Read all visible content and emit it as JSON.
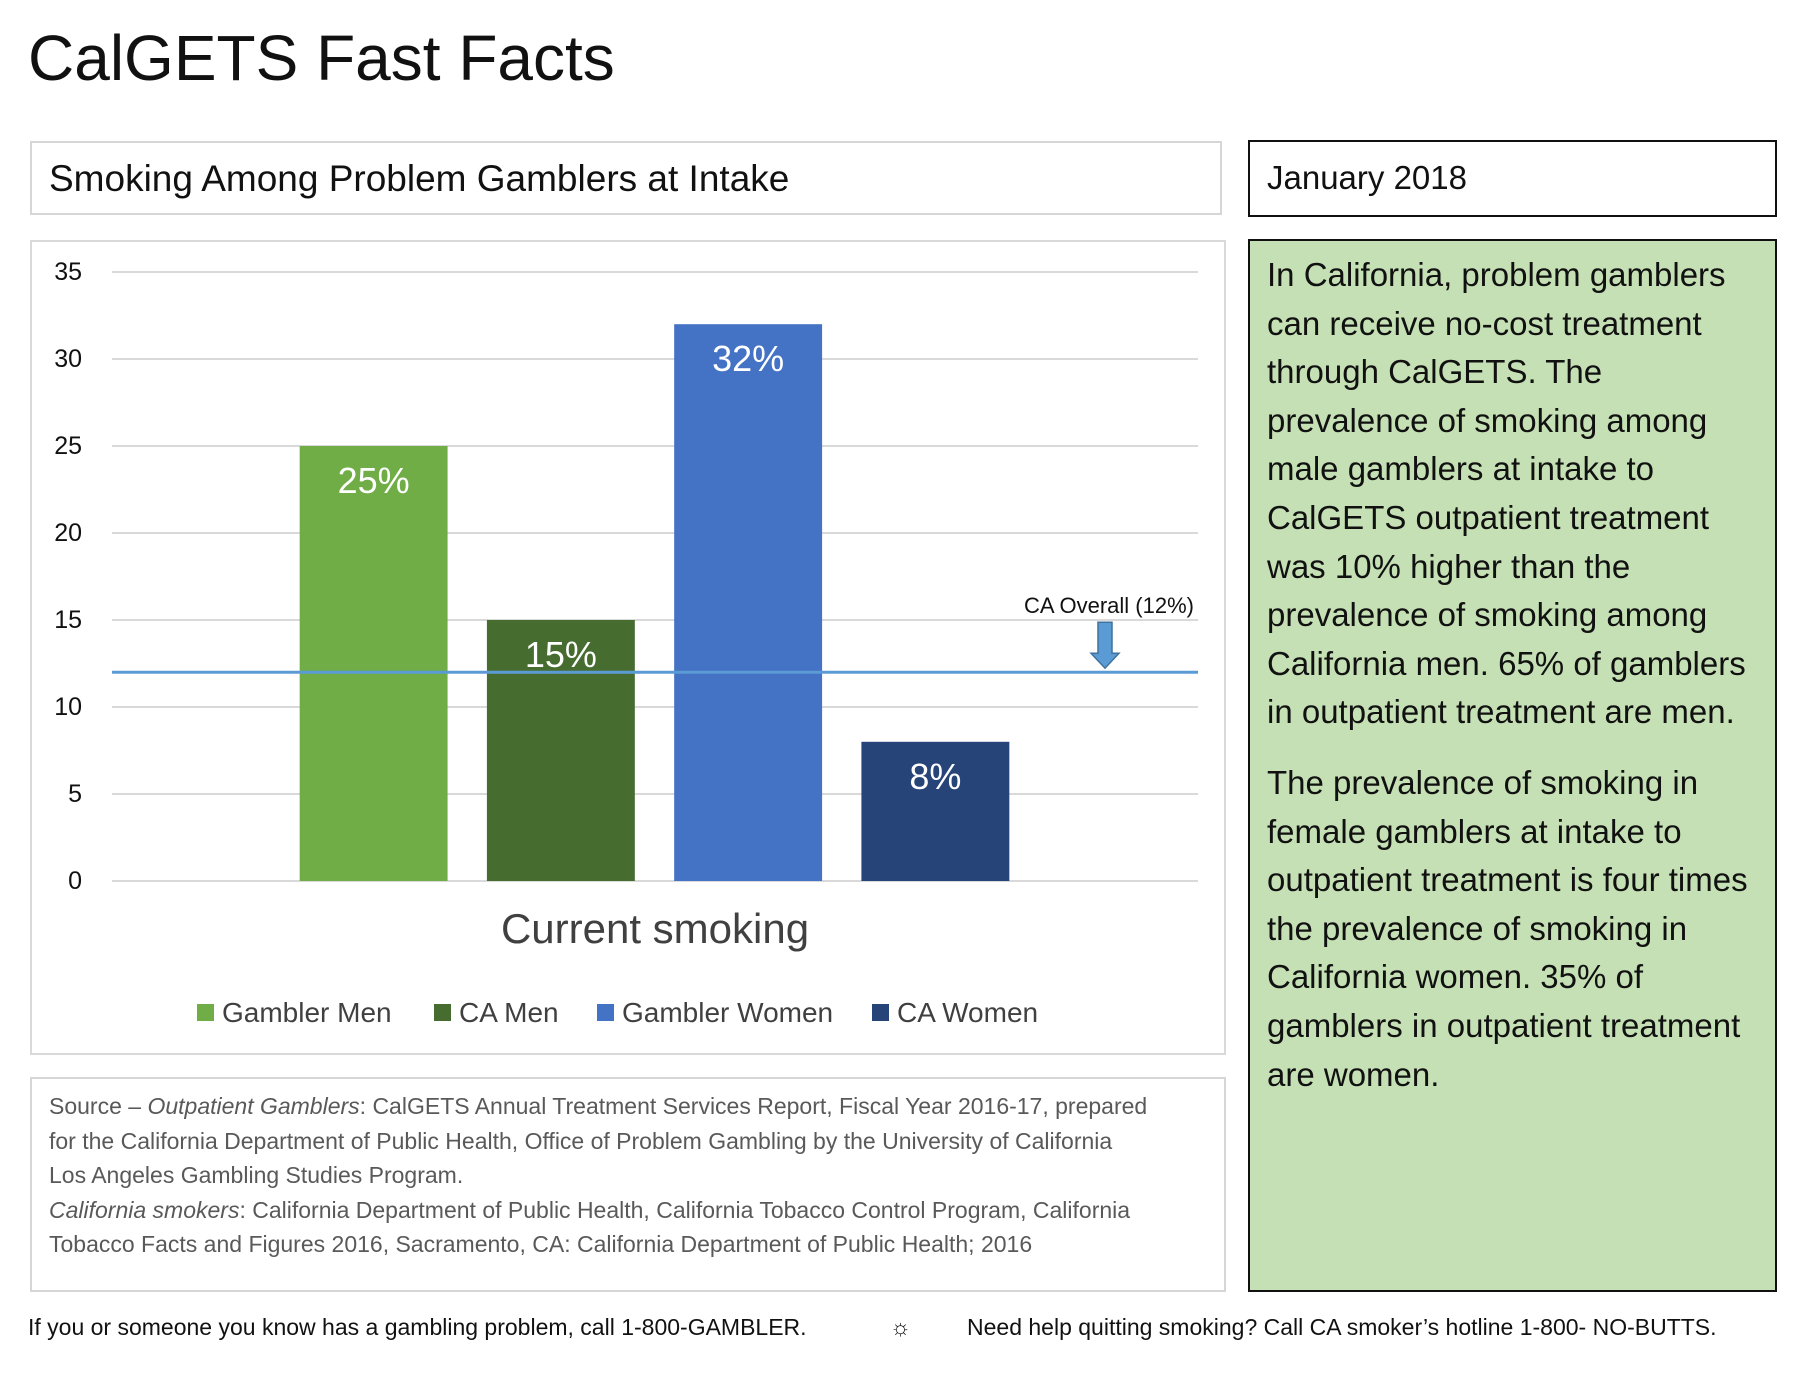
{
  "page": {
    "title": "CalGETS Fast Facts",
    "subtitle": "Smoking Among Problem Gamblers at Intake",
    "date": "January 2018"
  },
  "summary": {
    "paragraph1": "In California, problem gamblers can receive no-cost treatment through CalGETS. The prevalence of smoking among male gamblers at intake to CalGETS outpatient treatment was 10% higher than the prevalence of smoking among California men. 65% of gamblers in outpatient treatment are men.",
    "paragraph2": "The prevalence of smoking in female gamblers at intake to outpatient treatment is four times the prevalence of smoking in California women. 35% of gamblers in outpatient treatment are women."
  },
  "source": {
    "line1_prefix": "Source – ",
    "line1_italic": "Outpatient Gamblers",
    "line1_rest": ": CalGETS Annual Treatment Services Report, Fiscal Year 2016-17, prepared",
    "line2": "for the California Department of Public Health, Office of Problem Gambling by the University of California",
    "line3": "Los Angeles Gambling Studies Program.",
    "line4_italic": "California smokers",
    "line4_rest": ": California Department of Public Health, California Tobacco Control Program, California",
    "line5": "Tobacco Facts and Figures 2016, Sacramento, CA: California Department of Public Health; 2016"
  },
  "footer": {
    "left": "If you or someone you know has a gambling problem, call 1-800-GAMBLER.",
    "separator": "☼",
    "right": "Need help quitting smoking? Call CA smoker’s hotline 1-800- NO-BUTTS."
  },
  "chart_data": {
    "type": "bar",
    "xlabel": "Current smoking",
    "ylabel": "",
    "ylim": [
      0,
      35
    ],
    "yticks": [
      0,
      5,
      10,
      15,
      20,
      25,
      30,
      35
    ],
    "grid": true,
    "legend_position": "bottom",
    "series": [
      {
        "name": "Gambler Men",
        "value": 25,
        "label": "25%",
        "color": "#70ad47"
      },
      {
        "name": "CA Men",
        "value": 15,
        "label": "15%",
        "color": "#466d2f"
      },
      {
        "name": "Gambler Women",
        "value": 32,
        "label": "32%",
        "color": "#4472c4"
      },
      {
        "name": "CA Women",
        "value": 8,
        "label": "8%",
        "color": "#264478"
      }
    ],
    "reference_line": {
      "value": 12,
      "label": "CA Overall (12%)",
      "color": "#5b9bd5"
    }
  }
}
